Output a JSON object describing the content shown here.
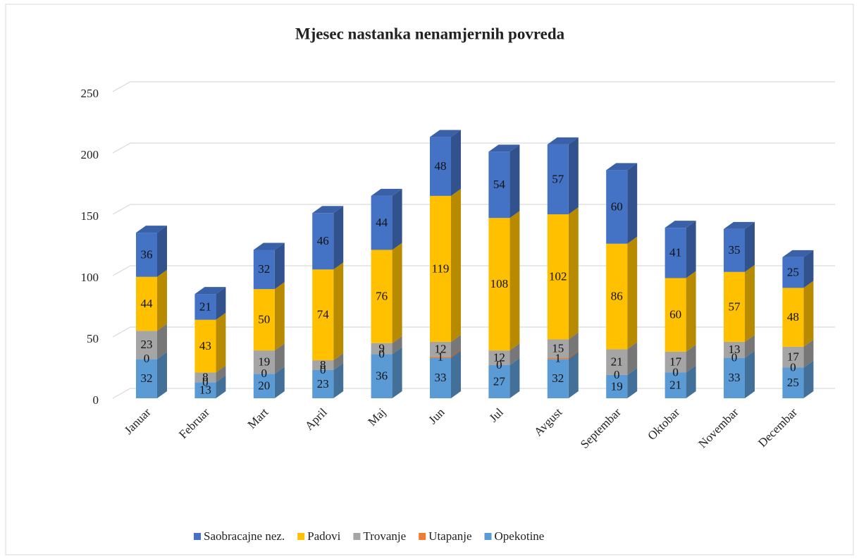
{
  "chart_data": {
    "type": "bar3d_stacked",
    "title": "Mjesec nastanka nenamjernih povreda",
    "categories": [
      "Januar",
      "Februar",
      "Mart",
      "April",
      "Maj",
      "Jun",
      "Jul",
      "Avgust",
      "Septembar",
      "Oktobar",
      "Novembar",
      "Decembar"
    ],
    "series": [
      {
        "name": "Opekotine",
        "color": "#5b9bd5",
        "values": [
          32,
          13,
          20,
          23,
          36,
          33,
          27,
          32,
          19,
          21,
          33,
          25
        ]
      },
      {
        "name": "Utapanje",
        "color": "#ed7d31",
        "values": [
          0,
          0,
          0,
          0,
          0,
          1,
          0,
          1,
          0,
          0,
          0,
          0
        ]
      },
      {
        "name": "Trovanje",
        "color": "#a5a5a5",
        "values": [
          23,
          8,
          19,
          8,
          9,
          12,
          12,
          15,
          21,
          17,
          13,
          17
        ]
      },
      {
        "name": "Padovi",
        "color": "#ffc000",
        "values": [
          44,
          43,
          50,
          74,
          76,
          119,
          108,
          102,
          86,
          60,
          57,
          48
        ]
      },
      {
        "name": "Saobracajne nez.",
        "color": "#4472c4",
        "values": [
          36,
          21,
          32,
          46,
          44,
          48,
          54,
          57,
          60,
          41,
          35,
          25
        ]
      }
    ],
    "ylim": [
      0,
      250
    ],
    "yticks": [
      0,
      50,
      100,
      150,
      200,
      250
    ],
    "grid": true,
    "legend": "bottom"
  }
}
